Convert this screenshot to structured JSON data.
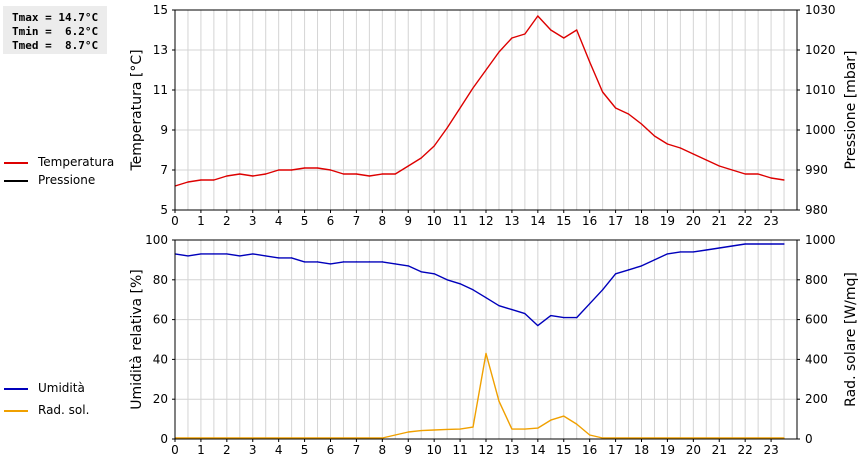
{
  "stats": {
    "tmax": "Tmax = 14.7°C",
    "tmin": "Tmin =  6.2°C",
    "tmed": "Tmed =  8.7°C"
  },
  "colors": {
    "temperature": "#dd0000",
    "pressure": "#000000",
    "humidity": "#0000bb",
    "radiation": "#f0a000",
    "grid": "#d4d4d4"
  },
  "chart_data": [
    {
      "type": "line",
      "x_ticks": [
        "0",
        "1",
        "2",
        "3",
        "4",
        "5",
        "6",
        "7",
        "8",
        "9",
        "10",
        "11",
        "12",
        "13",
        "14",
        "15",
        "16",
        "17",
        "18",
        "19",
        "20",
        "21",
        "22",
        "23"
      ],
      "xlim": [
        0,
        24
      ],
      "ylabel_left": "Temperatura [°C]",
      "ylabel_right": "Pressione [mbar]",
      "ylim_left": [
        5,
        15
      ],
      "ylim_right": [
        980,
        1030
      ],
      "yticks_left": [
        "5",
        "7",
        "9",
        "11",
        "13",
        "15"
      ],
      "yticks_right": [
        "980",
        "990",
        "1000",
        "1010",
        "1020",
        "1030"
      ],
      "grid": true,
      "legend": [
        "Temperatura",
        "Pressione"
      ],
      "series": [
        {
          "name": "Temperatura",
          "axis": "left",
          "x": [
            0,
            0.5,
            1,
            1.5,
            2,
            2.5,
            3,
            3.5,
            4,
            4.5,
            5,
            5.5,
            6,
            6.5,
            7,
            7.5,
            8,
            8.5,
            9,
            9.5,
            10,
            10.5,
            11,
            11.5,
            12,
            12.5,
            13,
            13.5,
            14,
            14.5,
            15,
            15.5,
            16,
            16.5,
            17,
            17.5,
            18,
            18.5,
            19,
            19.5,
            20,
            20.5,
            21,
            21.5,
            22,
            22.5,
            23,
            23.5
          ],
          "values": [
            6.2,
            6.4,
            6.5,
            6.5,
            6.7,
            6.8,
            6.7,
            6.8,
            7.0,
            7.0,
            7.1,
            7.1,
            7.0,
            6.8,
            6.8,
            6.7,
            6.8,
            6.8,
            7.2,
            7.6,
            8.2,
            9.1,
            10.1,
            11.1,
            12.0,
            12.9,
            13.6,
            13.8,
            14.7,
            14.0,
            13.6,
            14.0,
            12.4,
            10.9,
            10.1,
            9.8,
            9.3,
            8.7,
            8.3,
            8.1,
            7.8,
            7.5,
            7.2,
            7.0,
            6.8,
            6.8,
            6.6,
            6.5
          ]
        },
        {
          "name": "Pressione",
          "axis": "right",
          "x": [],
          "values": []
        }
      ]
    },
    {
      "type": "line",
      "x_ticks": [
        "0",
        "1",
        "2",
        "3",
        "4",
        "5",
        "6",
        "7",
        "8",
        "9",
        "10",
        "11",
        "12",
        "13",
        "14",
        "15",
        "16",
        "17",
        "18",
        "19",
        "20",
        "21",
        "22",
        "23"
      ],
      "xlim": [
        0,
        24
      ],
      "ylabel_left": "Umidità relativa [%]",
      "ylabel_right": "Rad. solare [W/mq]",
      "ylim_left": [
        0,
        100
      ],
      "ylim_right": [
        0,
        1000
      ],
      "yticks_left": [
        "0",
        "20",
        "40",
        "60",
        "80",
        "100"
      ],
      "yticks_right": [
        "0",
        "200",
        "400",
        "600",
        "800",
        "1000"
      ],
      "grid": true,
      "legend": [
        "Umidità",
        "Rad. sol."
      ],
      "series": [
        {
          "name": "Umidità",
          "axis": "left",
          "x": [
            0,
            0.5,
            1,
            1.5,
            2,
            2.5,
            3,
            3.5,
            4,
            4.5,
            5,
            5.5,
            6,
            6.5,
            7,
            7.5,
            8,
            8.5,
            9,
            9.5,
            10,
            10.5,
            11,
            11.5,
            12,
            12.5,
            13,
            13.5,
            14,
            14.5,
            15,
            15.5,
            16,
            16.5,
            17,
            17.5,
            18,
            18.5,
            19,
            19.5,
            20,
            20.5,
            21,
            21.5,
            22,
            22.5,
            23,
            23.5
          ],
          "values": [
            93,
            92,
            93,
            93,
            93,
            92,
            93,
            92,
            91,
            91,
            89,
            89,
            88,
            89,
            89,
            89,
            89,
            88,
            87,
            84,
            83,
            80,
            78,
            75,
            71,
            67,
            65,
            63,
            57,
            62,
            61,
            61,
            68,
            75,
            83,
            85,
            87,
            90,
            93,
            94,
            94,
            95,
            96,
            97,
            98,
            98,
            98,
            98
          ]
        },
        {
          "name": "Rad. sol.",
          "axis": "right",
          "x": [
            0,
            0.5,
            1,
            1.5,
            2,
            2.5,
            3,
            3.5,
            4,
            4.5,
            5,
            5.5,
            6,
            6.5,
            7,
            7.5,
            8,
            8.5,
            9,
            9.5,
            10,
            10.5,
            11,
            11.5,
            12,
            12.5,
            13,
            13.5,
            14,
            14.5,
            15,
            15.5,
            16,
            16.5,
            17,
            17.5,
            18,
            18.5,
            19,
            19.5,
            20,
            20.5,
            21,
            21.5,
            22,
            22.5,
            23,
            23.5
          ],
          "values": [
            5,
            5,
            5,
            5,
            5,
            5,
            5,
            5,
            5,
            5,
            5,
            5,
            5,
            5,
            5,
            5,
            5,
            20,
            35,
            42,
            45,
            48,
            50,
            60,
            430,
            190,
            50,
            50,
            55,
            95,
            115,
            75,
            20,
            5,
            5,
            5,
            5,
            5,
            5,
            5,
            5,
            5,
            5,
            5,
            5,
            5,
            5,
            5
          ]
        }
      ]
    }
  ]
}
